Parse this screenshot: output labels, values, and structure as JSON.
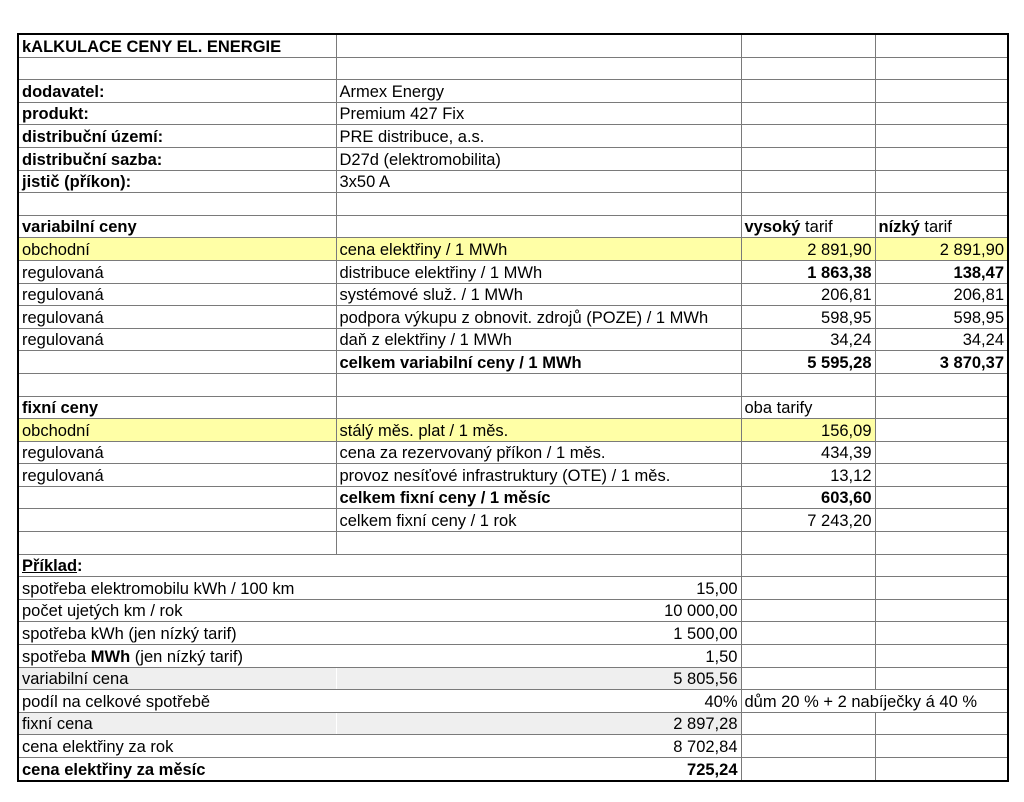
{
  "colors": {
    "highlight": "#ffffa6",
    "shade": "#efefef",
    "negative_accent": "#e0001b"
  },
  "rows": [
    {
      "cells": [
        {
          "t": "kALKULACE CENY EL. ENERGIE",
          "b": true
        },
        {},
        {},
        {}
      ]
    },
    {
      "cells": [
        {},
        {},
        {},
        {}
      ]
    },
    {
      "cells": [
        {
          "t": "dodavatel:",
          "b": true
        },
        {
          "t": "Armex Energy"
        },
        {},
        {}
      ]
    },
    {
      "cells": [
        {
          "t": "produkt:",
          "b": true
        },
        {
          "t": "Premium 427 Fix"
        },
        {},
        {}
      ]
    },
    {
      "cells": [
        {
          "t": "distribuční území:",
          "b": true
        },
        {
          "t": "PRE distribuce, a.s."
        },
        {},
        {}
      ]
    },
    {
      "cells": [
        {
          "t": "distribuční sazba:",
          "b": true
        },
        {
          "t": "D27d (elektromobilita)"
        },
        {},
        {}
      ]
    },
    {
      "cells": [
        {
          "t": "jistič (příkon):",
          "b": true
        },
        {
          "t": "3x50 A"
        },
        {},
        {}
      ]
    },
    {
      "cells": [
        {},
        {},
        {},
        {}
      ]
    },
    {
      "cells": [
        {
          "t": "variabilní ceny",
          "b": true
        },
        {},
        {
          "parts": [
            {
              "t": "vysoký",
              "b": true
            },
            {
              "t": " tarif"
            }
          ]
        },
        {
          "parts": [
            {
              "t": "nízký",
              "b": true
            },
            {
              "t": " tarif"
            }
          ]
        }
      ]
    },
    {
      "highlight": "all",
      "cells": [
        {
          "t": "obchodní"
        },
        {
          "t": "cena elektřiny / 1 MWh"
        },
        {
          "t": "2 891,90",
          "num": true
        },
        {
          "t": "2 891,90",
          "num": true
        }
      ]
    },
    {
      "cells": [
        {
          "t": "regulovaná"
        },
        {
          "t": "distribuce elektřiny / 1 MWh"
        },
        {
          "t": "1 863,38",
          "num": true,
          "red": true
        },
        {
          "t": "138,47",
          "num": true,
          "red": true
        }
      ]
    },
    {
      "cells": [
        {
          "t": "regulovaná"
        },
        {
          "t": "systémové služ. / 1 MWh"
        },
        {
          "t": "206,81",
          "num": true
        },
        {
          "t": "206,81",
          "num": true
        }
      ]
    },
    {
      "cells": [
        {
          "t": "regulovaná"
        },
        {
          "t": "podpora výkupu z obnovit. zdrojů (POZE) / 1 MWh"
        },
        {
          "t": "598,95",
          "num": true
        },
        {
          "t": "598,95",
          "num": true
        }
      ]
    },
    {
      "cells": [
        {
          "t": "regulovaná"
        },
        {
          "t": "daň z elektřiny / 1 MWh"
        },
        {
          "t": "34,24",
          "num": true
        },
        {
          "t": "34,24",
          "num": true
        }
      ]
    },
    {
      "cells": [
        {},
        {
          "t": "celkem variabilní ceny / 1 MWh",
          "b": true
        },
        {
          "t": "5 595,28",
          "num": true,
          "b": true
        },
        {
          "t": "3 870,37",
          "num": true,
          "b": true
        }
      ]
    },
    {
      "cells": [
        {},
        {},
        {},
        {}
      ]
    },
    {
      "cells": [
        {
          "t": "fixní ceny",
          "b": true
        },
        {},
        {
          "t": "oba tarify"
        },
        {}
      ]
    },
    {
      "highlight": "first3",
      "cells": [
        {
          "t": "obchodní"
        },
        {
          "t": "stálý měs. plat / 1 měs."
        },
        {
          "t": "156,09",
          "num": true
        },
        {}
      ]
    },
    {
      "cells": [
        {
          "t": "regulovaná"
        },
        {
          "t": "cena za rezervovaný příkon / 1 měs."
        },
        {
          "t": "434,39",
          "num": true
        },
        {}
      ]
    },
    {
      "cells": [
        {
          "t": "regulovaná"
        },
        {
          "t": "provoz nesíťové infrastruktury (OTE) / 1 měs."
        },
        {
          "t": "13,12",
          "num": true
        },
        {}
      ]
    },
    {
      "cells": [
        {},
        {
          "t": "celkem fixní ceny / 1 měsíc",
          "b": true
        },
        {
          "t": "603,60",
          "num": true,
          "b": true
        },
        {}
      ]
    },
    {
      "cells": [
        {},
        {
          "t": "celkem fixní ceny / 1 rok"
        },
        {
          "t": "7 243,20",
          "num": true
        },
        {}
      ]
    },
    {
      "cells": [
        {},
        {},
        {},
        {}
      ]
    },
    {
      "example": true,
      "cells": [
        {
          "parts": [
            {
              "t": "Příklad",
              "b": true,
              "u": true
            },
            {
              "t": ":",
              "b": true
            }
          ]
        },
        {},
        {},
        {}
      ]
    },
    {
      "example": true,
      "cells": [
        {
          "t": "spotřeba elektromobilu kWh / 100 km"
        },
        {
          "t": "15,00",
          "num": true
        },
        {},
        {}
      ]
    },
    {
      "example": true,
      "cells": [
        {
          "t": "počet ujetých km / rok"
        },
        {
          "t": "10 000,00",
          "num": true
        },
        {},
        {}
      ]
    },
    {
      "example": true,
      "cells": [
        {
          "t": "spotřeba kWh (jen nízký tarif)"
        },
        {
          "t": "1 500,00",
          "num": true
        },
        {},
        {}
      ]
    },
    {
      "example": true,
      "cells": [
        {
          "parts": [
            {
              "t": "spotřeba "
            },
            {
              "t": "MWh",
              "b": true
            },
            {
              "t": " (jen nízký tarif)"
            }
          ]
        },
        {
          "t": "1,50",
          "num": true
        },
        {},
        {}
      ]
    },
    {
      "example": true,
      "shade": true,
      "cells": [
        {
          "t": "variabilní cena"
        },
        {
          "t": "5 805,56",
          "num": true
        },
        {},
        {}
      ]
    },
    {
      "example": true,
      "note": true,
      "cells": [
        {
          "t": "podíl na celkové spotřebě"
        },
        {
          "t": "40%",
          "num": true
        },
        {
          "t": "dům 20 % + 2 nabíječky á 40 %"
        }
      ]
    },
    {
      "example": true,
      "shade": true,
      "cells": [
        {
          "t": "fixní cena"
        },
        {
          "t": "2 897,28",
          "num": true
        },
        {},
        {}
      ]
    },
    {
      "example": true,
      "cells": [
        {
          "t": "cena elektřiny za rok"
        },
        {
          "t": "8 702,84",
          "num": true
        },
        {},
        {}
      ]
    },
    {
      "example": true,
      "cells": [
        {
          "t": "cena elektřiny za měsíc",
          "b": true
        },
        {
          "t": "725,24",
          "num": true,
          "b": true
        },
        {},
        {}
      ]
    }
  ]
}
